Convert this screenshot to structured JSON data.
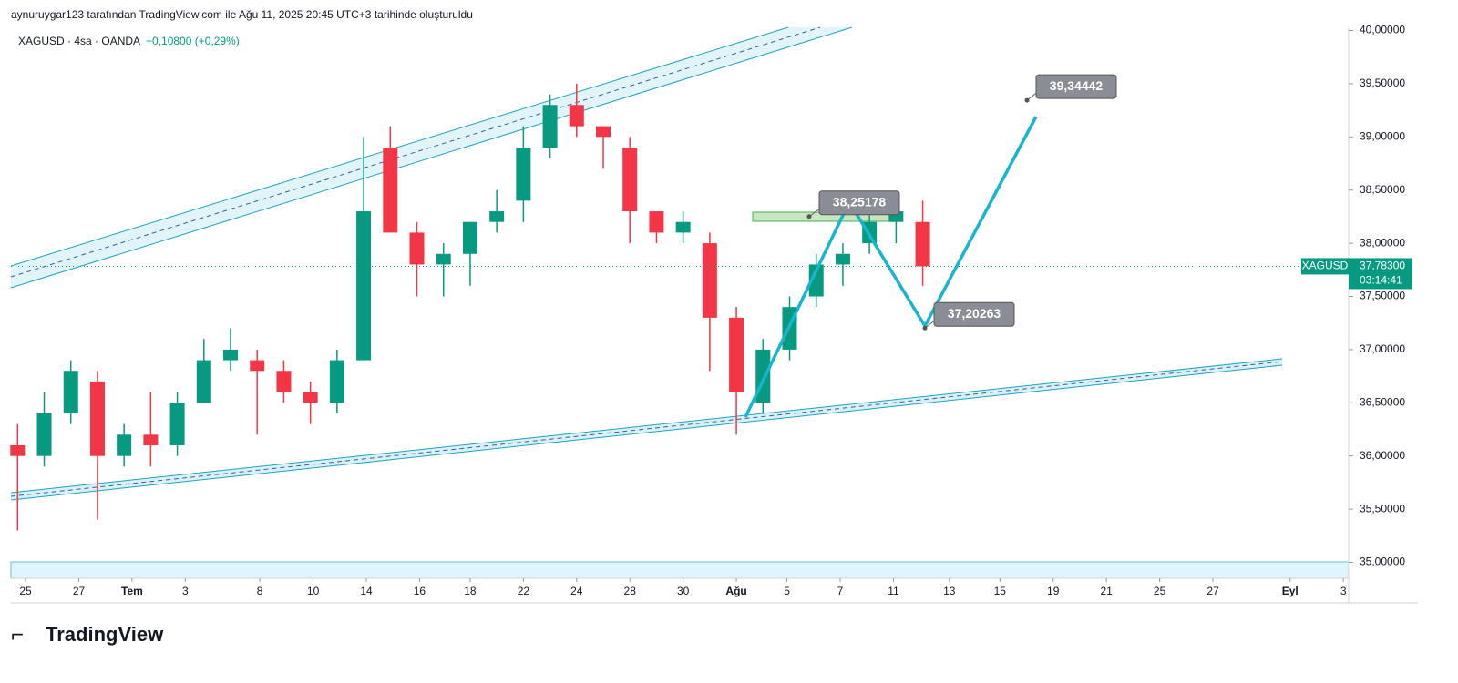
{
  "header": "aynuruygar123 tarafından TradingView.com ile Ağu 11, 2025 20:45 UTC+3 tarihinde oluşturuldu",
  "brand": "TradingView",
  "chart_data": {
    "type": "candlestick",
    "symbol": "XAGUSD · 4sa · OANDA",
    "change": "+0,10800 (+0,29%)",
    "up_color": "#089981",
    "down_color": "#f23645",
    "x": [
      -0.3,
      0.7,
      1.7,
      2.7,
      3.7,
      4.7,
      5.7,
      6.7,
      7.7,
      8.7,
      9.7,
      10.7,
      11.7,
      12.7,
      13.7,
      14.7,
      15.7,
      16.7,
      17.7,
      18.7,
      19.7,
      20.7,
      21.7,
      22.7,
      23.7,
      24.7,
      25.7,
      26.7,
      27.7,
      28.7,
      29.7,
      30.7,
      31.7,
      32.7,
      33.7
    ],
    "open": [
      36.1,
      36.0,
      36.4,
      36.7,
      36.0,
      36.2,
      36.1,
      36.5,
      36.9,
      36.9,
      36.8,
      36.6,
      36.5,
      36.9,
      38.9,
      38.1,
      37.8,
      37.9,
      38.2,
      38.4,
      38.9,
      39.3,
      39.1,
      38.9,
      38.3,
      38.1,
      38.0,
      37.3,
      36.5,
      37.0,
      37.5,
      37.8,
      38.0,
      38.2,
      38.2
    ],
    "high": [
      36.3,
      36.6,
      36.9,
      36.8,
      36.3,
      36.6,
      36.6,
      37.1,
      37.2,
      37.0,
      36.9,
      36.7,
      37.0,
      39.0,
      39.1,
      38.2,
      38.0,
      38.2,
      38.5,
      39.1,
      39.4,
      39.5,
      39.1,
      39.0,
      38.3,
      38.3,
      38.1,
      37.4,
      37.1,
      37.5,
      37.9,
      38.0,
      38.3,
      38.4,
      38.4
    ],
    "low": [
      35.3,
      35.9,
      36.3,
      35.4,
      35.9,
      35.9,
      36.0,
      36.5,
      36.8,
      36.2,
      36.5,
      36.3,
      36.4,
      36.9,
      38.1,
      37.5,
      37.5,
      37.6,
      38.1,
      38.2,
      38.8,
      39.0,
      38.7,
      38.0,
      38.0,
      38.0,
      36.8,
      36.2,
      36.4,
      36.9,
      37.4,
      37.6,
      37.9,
      38.0,
      37.6
    ],
    "close": [
      36.0,
      36.4,
      36.8,
      36.0,
      36.2,
      36.1,
      36.5,
      36.9,
      37.0,
      36.8,
      36.6,
      36.5,
      36.9,
      38.3,
      38.1,
      37.8,
      37.9,
      38.2,
      38.3,
      38.9,
      39.3,
      39.1,
      39.0,
      38.3,
      38.1,
      38.2,
      37.3,
      36.6,
      37.0,
      37.4,
      37.8,
      37.9,
      38.2,
      38.3,
      37.783
    ],
    "xlim": [
      -0.55,
      49.7
    ],
    "xticks": [
      {
        "value": 0,
        "label": "25"
      },
      {
        "value": 2,
        "label": "27"
      },
      {
        "value": 4,
        "label": "Tem"
      },
      {
        "value": 6,
        "label": "3"
      },
      {
        "value": 8.8,
        "label": "8"
      },
      {
        "value": 10.8,
        "label": "10"
      },
      {
        "value": 12.8,
        "label": "14"
      },
      {
        "value": 14.8,
        "label": "16"
      },
      {
        "value": 16.7,
        "label": "18"
      },
      {
        "value": 18.7,
        "label": "22"
      },
      {
        "value": 20.7,
        "label": "24"
      },
      {
        "value": 22.7,
        "label": "28"
      },
      {
        "value": 24.7,
        "label": "30"
      },
      {
        "value": 26.7,
        "label": "Ağu"
      },
      {
        "value": 28.6,
        "label": "5"
      },
      {
        "value": 30.6,
        "label": "7"
      },
      {
        "value": 32.6,
        "label": "11"
      },
      {
        "value": 34.7,
        "label": "13"
      },
      {
        "value": 36.6,
        "label": "15"
      },
      {
        "value": 38.6,
        "label": "19"
      },
      {
        "value": 40.6,
        "label": "21"
      },
      {
        "value": 42.6,
        "label": "25"
      },
      {
        "value": 44.6,
        "label": "27"
      },
      {
        "value": 47.5,
        "label": "Eyl"
      },
      {
        "value": 49.5,
        "label": "3"
      }
    ],
    "ylim": [
      34.85,
      40.03
    ],
    "yticks": [
      {
        "value": 35,
        "label": "35,00000"
      },
      {
        "value": 35.5,
        "label": "35,50000"
      },
      {
        "value": 36,
        "label": "36,00000"
      },
      {
        "value": 36.5,
        "label": "36,50000"
      },
      {
        "value": 37,
        "label": "37,00000"
      },
      {
        "value": 37.5,
        "label": "37,50000"
      },
      {
        "value": 38,
        "label": "38,00000"
      },
      {
        "value": 38.5,
        "label": "38,50000"
      },
      {
        "value": 39,
        "label": "39,00000"
      },
      {
        "value": 39.5,
        "label": "39,50000"
      },
      {
        "value": 40,
        "label": "40,00000"
      }
    ],
    "last_price": {
      "name": "XAGUSD",
      "value": 37.783,
      "label": "37,78300",
      "countdown": "03:14:41"
    },
    "annotations": [
      {
        "value": 39.34442,
        "label": "39,34442"
      },
      {
        "value": 38.25178,
        "label": "38,25178"
      },
      {
        "value": 37.20263,
        "label": "37,20263"
      }
    ]
  }
}
